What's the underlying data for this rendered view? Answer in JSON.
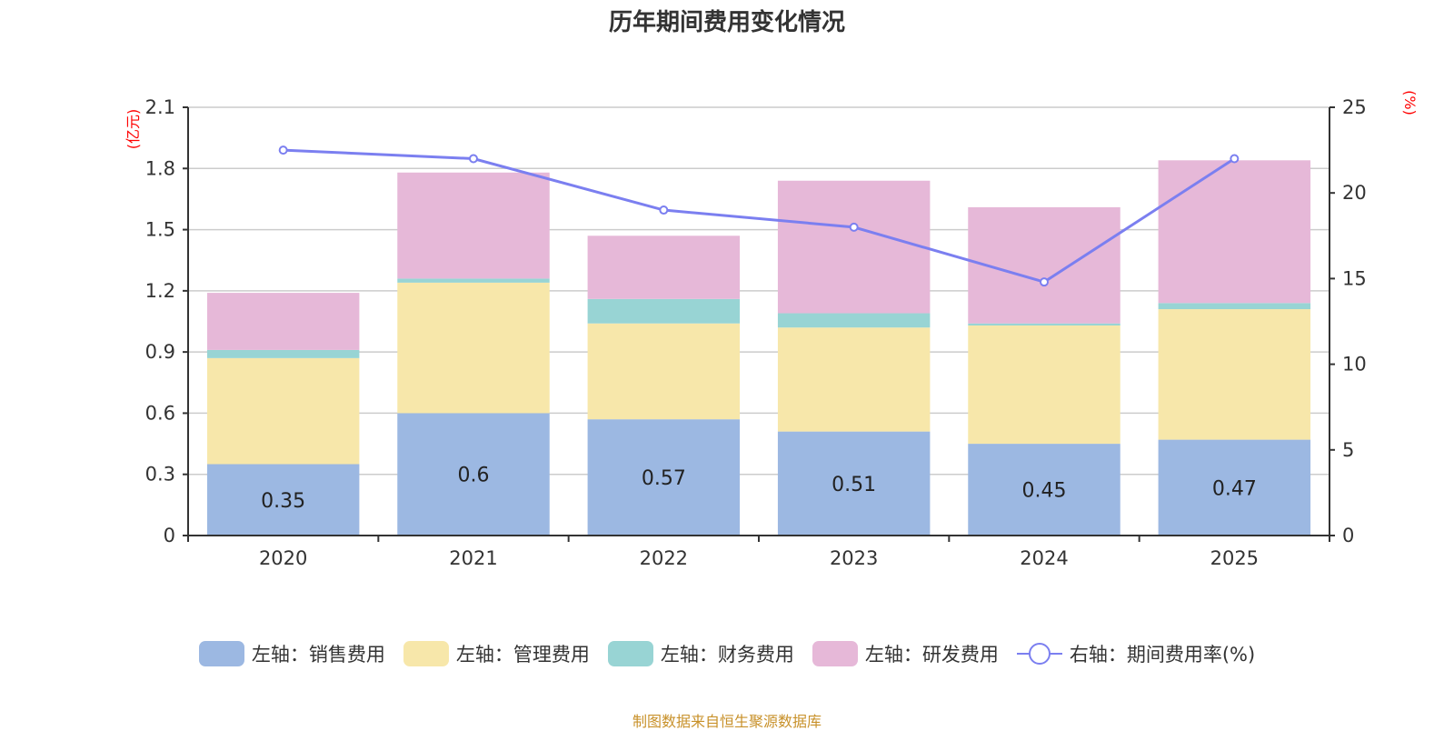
{
  "chart_data": {
    "type": "bar",
    "title": "历年期间费用变化情况",
    "categories": [
      "2020",
      "2021",
      "2022",
      "2023",
      "2024",
      "2025"
    ],
    "left_axis": {
      "unit_label": "(亿元)",
      "ylim": [
        0,
        2.1
      ],
      "ticks": [
        "0",
        "0.3",
        "0.6",
        "0.9",
        "1.2",
        "1.5",
        "1.8",
        "2.1"
      ]
    },
    "right_axis": {
      "unit_label": "(%)",
      "ylim": [
        0,
        25
      ],
      "ticks": [
        "0",
        "5",
        "10",
        "15",
        "20",
        "25"
      ]
    },
    "grid": true,
    "stacked": true,
    "series": [
      {
        "name": "左轴：销售费用",
        "axis": "left",
        "type": "bar",
        "color": "#9cb8e2",
        "values": [
          0.35,
          0.6,
          0.57,
          0.51,
          0.45,
          0.47
        ],
        "labels": [
          "0.35",
          "0.6",
          "0.57",
          "0.51",
          "0.45",
          "0.47"
        ]
      },
      {
        "name": "左轴：管理费用",
        "axis": "left",
        "type": "bar",
        "color": "#f7e7aa",
        "values": [
          0.52,
          0.64,
          0.47,
          0.51,
          0.58,
          0.64
        ]
      },
      {
        "name": "左轴：财务费用",
        "axis": "left",
        "type": "bar",
        "color": "#98d4d4",
        "values": [
          0.04,
          0.02,
          0.12,
          0.07,
          0.01,
          0.03
        ]
      },
      {
        "name": "左轴：研发费用",
        "axis": "left",
        "type": "bar",
        "color": "#e6b8d8",
        "values": [
          0.28,
          0.52,
          0.31,
          0.65,
          0.57,
          0.7
        ]
      },
      {
        "name": "右轴：期间费用率(%)",
        "axis": "right",
        "type": "line",
        "color": "#7b7ff0",
        "values": [
          22.5,
          22.0,
          19.0,
          18.0,
          14.8,
          22.0
        ]
      }
    ],
    "legend_position": "bottom"
  },
  "source": "制图数据来自恒生聚源数据库"
}
